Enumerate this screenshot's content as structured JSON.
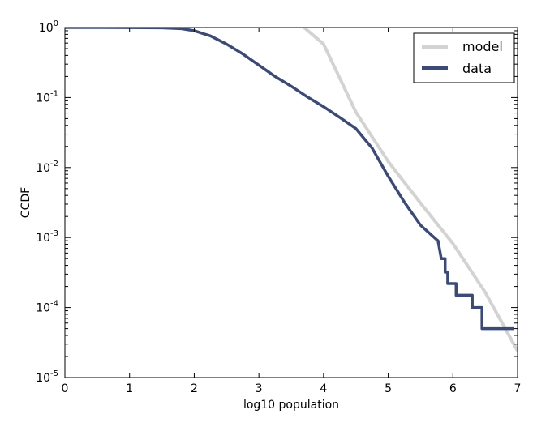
{
  "chart_data": {
    "type": "line",
    "title": "",
    "xlabel": "log10 population",
    "ylabel": "CCDF",
    "xlim": [
      0,
      7
    ],
    "ylim": [
      1e-05,
      1
    ],
    "yscale": "log",
    "grid": false,
    "legend_position": "top-right",
    "xticks": [
      "0",
      "1",
      "2",
      "3",
      "4",
      "5",
      "6",
      "7"
    ],
    "yticks": [
      {
        "base": "10",
        "exp": "0",
        "value": 1
      },
      {
        "base": "10",
        "exp": "-1",
        "value": 0.1
      },
      {
        "base": "10",
        "exp": "-2",
        "value": 0.01
      },
      {
        "base": "10",
        "exp": "-3",
        "value": 0.001
      },
      {
        "base": "10",
        "exp": "-4",
        "value": 0.0001
      },
      {
        "base": "10",
        "exp": "-5",
        "value": 1e-05
      }
    ],
    "series": [
      {
        "name": "model",
        "color": "#d3d3d3",
        "style": "line",
        "x": [
          3.7,
          4.0,
          4.5,
          5.0,
          5.5,
          6.0,
          6.5,
          7.0
        ],
        "y": [
          1.0,
          0.58,
          0.062,
          0.0122,
          0.0031,
          0.00082,
          0.000165,
          2.4e-05
        ]
      },
      {
        "name": "data",
        "color": "#3a4a7a",
        "style": "line",
        "x": [
          0,
          0.5,
          1.0,
          1.5,
          1.8,
          2.0,
          2.25,
          2.5,
          2.75,
          3.0,
          3.25,
          3.5,
          3.75,
          4.0,
          4.25,
          4.5,
          4.75,
          5.0,
          5.25,
          5.5,
          5.75,
          5.77,
          5.82,
          5.88,
          5.88,
          5.92,
          5.92,
          6.05,
          6.05,
          6.3,
          6.3,
          6.45,
          6.45,
          6.57,
          6.57,
          6.95
        ],
        "y": [
          1.0,
          1.0,
          0.997,
          0.99,
          0.965,
          0.9,
          0.76,
          0.58,
          0.42,
          0.29,
          0.2,
          0.145,
          0.102,
          0.074,
          0.052,
          0.036,
          0.019,
          0.0075,
          0.0032,
          0.0015,
          0.00093,
          0.0009,
          0.0005,
          0.0005,
          0.00032,
          0.00032,
          0.00022,
          0.00022,
          0.00015,
          0.00015,
          0.0001,
          0.0001,
          5e-05,
          5e-05,
          5e-05,
          5e-05
        ]
      }
    ]
  }
}
